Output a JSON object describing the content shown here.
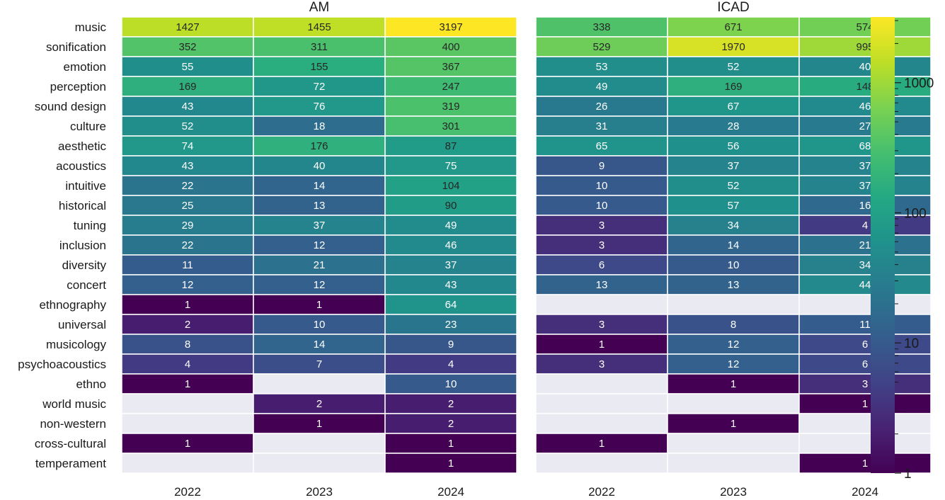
{
  "chart_data": {
    "type": "heatmap",
    "color_scale": "log",
    "colormap": "viridis",
    "missing_color": "#eaeaf2",
    "colorbar": {
      "range": [
        1,
        3197
      ],
      "ticks": [
        {
          "value": 1,
          "label": "1"
        },
        {
          "value": 10,
          "label": "10"
        },
        {
          "value": 100,
          "label": "100"
        },
        {
          "value": 1000,
          "label": "1000"
        }
      ]
    },
    "rows": [
      "music",
      "sonification",
      "emotion",
      "perception",
      "sound design",
      "culture",
      "aesthetic",
      "acoustics",
      "intuitive",
      "historical",
      "tuning",
      "inclusion",
      "diversity",
      "concert",
      "ethnography",
      "universal",
      "musicology",
      "psychoacoustics",
      "ethno",
      "world music",
      "non-western",
      "cross-cultural",
      "temperament"
    ],
    "columns": [
      "2022",
      "2023",
      "2024"
    ],
    "panels": [
      {
        "title": "AM",
        "values": [
          [
            1427,
            1455,
            3197
          ],
          [
            352,
            311,
            400
          ],
          [
            55,
            155,
            367
          ],
          [
            169,
            72,
            247
          ],
          [
            43,
            76,
            319
          ],
          [
            52,
            18,
            301
          ],
          [
            74,
            176,
            87
          ],
          [
            43,
            40,
            75
          ],
          [
            22,
            14,
            104
          ],
          [
            25,
            13,
            90
          ],
          [
            29,
            37,
            49
          ],
          [
            22,
            12,
            46
          ],
          [
            11,
            21,
            37
          ],
          [
            12,
            12,
            43
          ],
          [
            1,
            1,
            64
          ],
          [
            2,
            10,
            23
          ],
          [
            8,
            14,
            9
          ],
          [
            4,
            7,
            4
          ],
          [
            1,
            null,
            10
          ],
          [
            null,
            2,
            2
          ],
          [
            null,
            1,
            2
          ],
          [
            1,
            null,
            1
          ],
          [
            null,
            null,
            1
          ]
        ]
      },
      {
        "title": "ICAD",
        "values": [
          [
            338,
            671,
            574
          ],
          [
            529,
            1970,
            995
          ],
          [
            53,
            52,
            40
          ],
          [
            49,
            169,
            148
          ],
          [
            26,
            67,
            46
          ],
          [
            31,
            28,
            27
          ],
          [
            65,
            56,
            68
          ],
          [
            9,
            37,
            37
          ],
          [
            10,
            52,
            37
          ],
          [
            10,
            57,
            16
          ],
          [
            3,
            34,
            4
          ],
          [
            3,
            14,
            21
          ],
          [
            6,
            10,
            34
          ],
          [
            13,
            13,
            44
          ],
          [
            null,
            null,
            null
          ],
          [
            3,
            8,
            11
          ],
          [
            1,
            12,
            6
          ],
          [
            3,
            12,
            6
          ],
          [
            null,
            1,
            3
          ],
          [
            null,
            null,
            1
          ],
          [
            null,
            1,
            null
          ],
          [
            1,
            null,
            null
          ],
          [
            null,
            null,
            1
          ]
        ]
      }
    ]
  }
}
